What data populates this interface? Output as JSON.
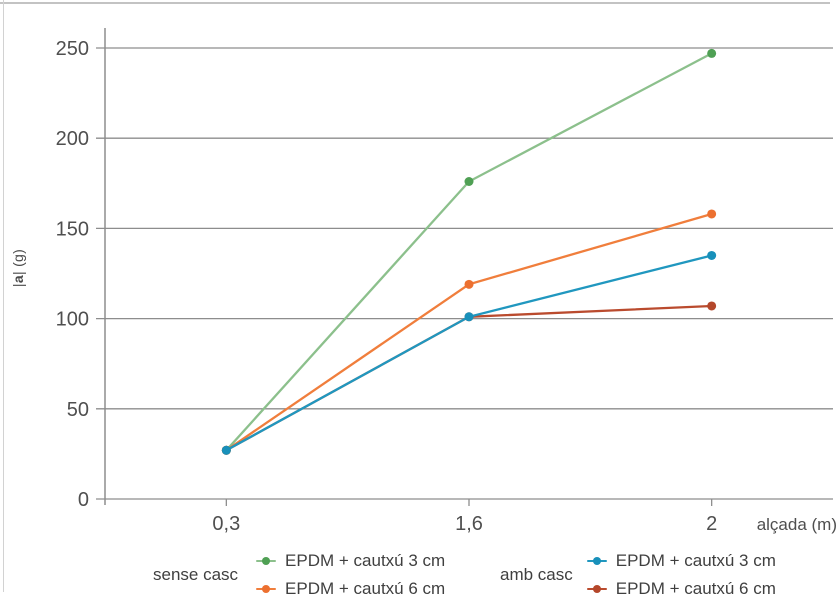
{
  "chart_data": {
    "type": "line",
    "title": "",
    "xlabel": "alçada (m)",
    "ylabel": "|a| (g)",
    "ylabel_parts": {
      "pre": "|",
      "bold": "a",
      "post": "| (g)"
    },
    "x_tick_labels": [
      "0,3",
      "1,6",
      "2"
    ],
    "x_values_m": [
      0.3,
      1.6,
      2
    ],
    "x_axis_type": "categorical-equal-spacing",
    "ylim": [
      0,
      250
    ],
    "yticks": [
      "0",
      "50",
      "100",
      "150",
      "200",
      "250"
    ],
    "grid": "horizontal gridlines at every y tick",
    "legend_position": "bottom, two labelled groups",
    "legend_groups": [
      {
        "label": "sense casc",
        "series_indexes": [
          0,
          1
        ]
      },
      {
        "label": "amb casc",
        "series_indexes": [
          2,
          3
        ]
      }
    ],
    "series": [
      {
        "group": "sense casc",
        "label": "EPDM + cautxú 3 cm",
        "color": "#8CC08C",
        "marker_color": "#4FA054",
        "values": [
          27,
          176,
          247
        ]
      },
      {
        "group": "sense casc",
        "label": "EPDM + cautxú 6 cm",
        "color": "#F07E3C",
        "marker_color": "#EC7030",
        "values": [
          27,
          119,
          158
        ]
      },
      {
        "group": "amb casc",
        "label": "EPDM + cautxú 3 cm",
        "color": "#2097BF",
        "marker_color": "#1890BA",
        "values": [
          27,
          101,
          135
        ]
      },
      {
        "group": "amb casc",
        "label": "EPDM + cautxú 6 cm",
        "color": "#BA4B2E",
        "marker_color": "#B4472B",
        "values": [
          27,
          101,
          107
        ]
      }
    ]
  }
}
